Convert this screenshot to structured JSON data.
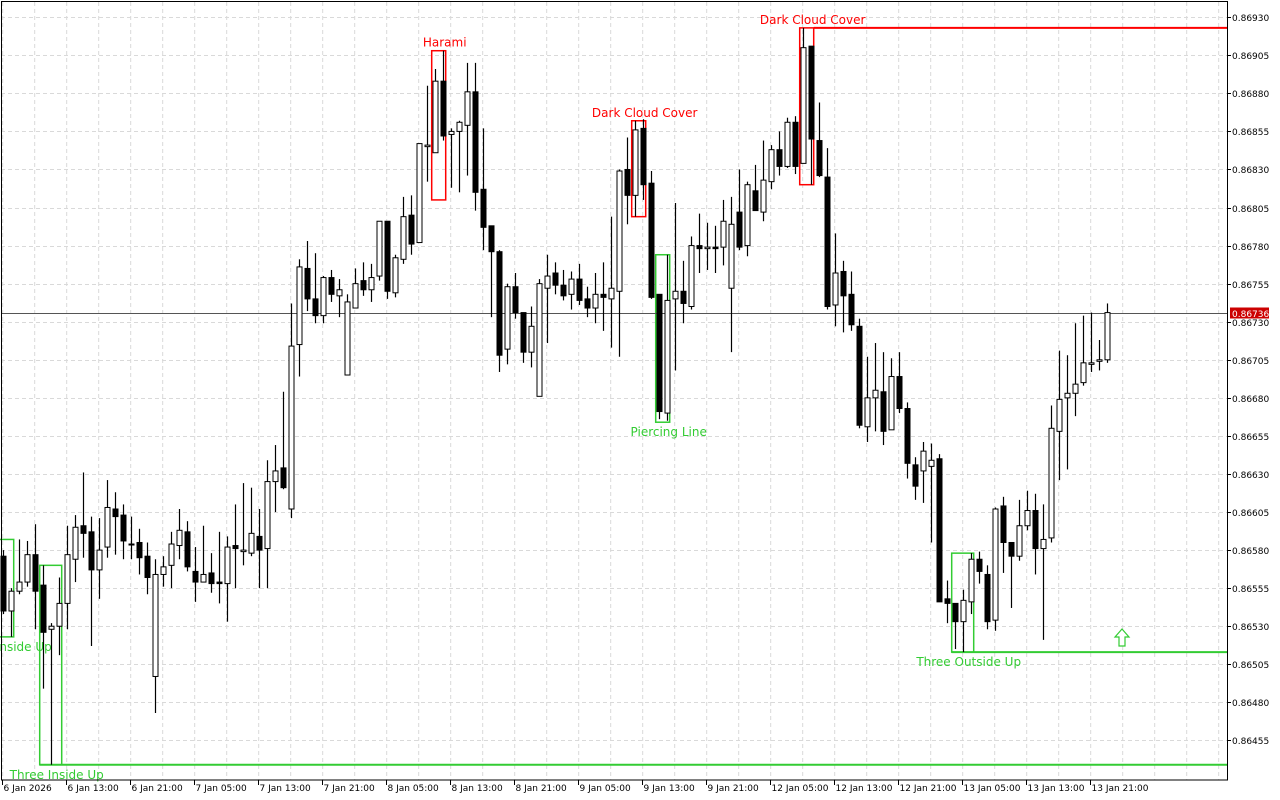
{
  "chart_data": {
    "type": "candlestick",
    "ylim": [
      0.86429,
      0.8694
    ],
    "grid": true,
    "current_price": 0.86736,
    "current_price_label": "0.86736",
    "colors": {
      "bear_pattern": "#ff0000",
      "bull_pattern": "#33cc33",
      "price_tag": "#cc0000",
      "grid": "#d9d9d9",
      "candle": "#000000"
    },
    "y_tick_labels": [
      "0.86930",
      "0.86905",
      "0.86880",
      "0.86855",
      "0.86830",
      "0.86805",
      "0.86780",
      "0.86755",
      "0.86730",
      "0.86705",
      "0.86680",
      "0.86655",
      "0.86630",
      "0.86605",
      "0.86580",
      "0.86555",
      "0.86530",
      "0.86505",
      "0.86480",
      "0.86455"
    ],
    "x_tick_labels": [
      "6 Jan 2026",
      "6 Jan 13:00",
      "6 Jan 21:00",
      "7 Jan 05:00",
      "7 Jan 13:00",
      "7 Jan 21:00",
      "8 Jan 05:00",
      "8 Jan 13:00",
      "8 Jan 21:00",
      "9 Jan 05:00",
      "9 Jan 13:00",
      "9 Jan 21:00",
      "12 Jan 05:00",
      "12 Jan 13:00",
      "12 Jan 21:00",
      "13 Jan 05:00",
      "13 Jan 13:00",
      "13 Jan 21:00"
    ],
    "candle_fields": [
      "open",
      "high",
      "low",
      "close"
    ],
    "candles": [
      [
        0.86576,
        0.8658,
        0.86538,
        0.8654
      ],
      [
        0.8654,
        0.86555,
        0.86523,
        0.86553
      ],
      [
        0.86553,
        0.86587,
        0.86551,
        0.86559
      ],
      [
        0.86559,
        0.86586,
        0.86556,
        0.86577
      ],
      [
        0.86577,
        0.86597,
        0.86528,
        0.86553
      ],
      [
        0.86557,
        0.8657,
        0.86489,
        0.86526
      ],
      [
        0.86528,
        0.86532,
        0.86439,
        0.8653
      ],
      [
        0.8653,
        0.86562,
        0.86511,
        0.86545
      ],
      [
        0.86545,
        0.86596,
        0.86528,
        0.86577
      ],
      [
        0.86574,
        0.86603,
        0.86559,
        0.86595
      ],
      [
        0.86596,
        0.86631,
        0.86575,
        0.86591
      ],
      [
        0.86592,
        0.86602,
        0.86517,
        0.86567
      ],
      [
        0.86567,
        0.86601,
        0.86548,
        0.8658
      ],
      [
        0.86582,
        0.86626,
        0.86575,
        0.86608
      ],
      [
        0.86607,
        0.86618,
        0.86577,
        0.86602
      ],
      [
        0.86603,
        0.8661,
        0.86574,
        0.86586
      ],
      [
        0.86584,
        0.86602,
        0.86574,
        0.86584
      ],
      [
        0.86585,
        0.86594,
        0.86564,
        0.86575
      ],
      [
        0.86576,
        0.86585,
        0.86551,
        0.86562
      ],
      [
        0.86497,
        0.86574,
        0.86473,
        0.86564
      ],
      [
        0.86564,
        0.86576,
        0.86556,
        0.86569
      ],
      [
        0.8657,
        0.86592,
        0.86555,
        0.86584
      ],
      [
        0.86583,
        0.86607,
        0.86574,
        0.86593
      ],
      [
        0.86592,
        0.86599,
        0.86566,
        0.86569
      ],
      [
        0.86566,
        0.86582,
        0.86546,
        0.86559
      ],
      [
        0.86559,
        0.86596,
        0.86559,
        0.86564
      ],
      [
        0.86565,
        0.86578,
        0.86552,
        0.86558
      ],
      [
        0.86559,
        0.86592,
        0.86545,
        0.86558
      ],
      [
        0.86558,
        0.86589,
        0.86533,
        0.86582
      ],
      [
        0.86583,
        0.8661,
        0.86555,
        0.86581
      ],
      [
        0.86579,
        0.86624,
        0.8657,
        0.8658
      ],
      [
        0.86578,
        0.86621,
        0.86576,
        0.86591
      ],
      [
        0.86589,
        0.86607,
        0.86555,
        0.8658
      ],
      [
        0.86581,
        0.86639,
        0.86555,
        0.86625
      ],
      [
        0.86625,
        0.86649,
        0.86605,
        0.86632
      ],
      [
        0.86634,
        0.86684,
        0.8662,
        0.86621
      ],
      [
        0.86607,
        0.86742,
        0.86601,
        0.86714
      ],
      [
        0.86715,
        0.86771,
        0.86694,
        0.86766
      ],
      [
        0.86765,
        0.86783,
        0.86737,
        0.86745
      ],
      [
        0.86745,
        0.86775,
        0.86729,
        0.86734
      ],
      [
        0.86734,
        0.8676,
        0.86729,
        0.86759
      ],
      [
        0.86759,
        0.86764,
        0.86743,
        0.86748
      ],
      [
        0.86747,
        0.86758,
        0.86733,
        0.86751
      ],
      [
        0.86695,
        0.86748,
        0.86695,
        0.86743
      ],
      [
        0.86739,
        0.86765,
        0.86739,
        0.86755
      ],
      [
        0.86757,
        0.86769,
        0.86747,
        0.86751
      ],
      [
        0.86751,
        0.86768,
        0.86743,
        0.86759
      ],
      [
        0.8676,
        0.86796,
        0.86757,
        0.86796
      ],
      [
        0.86796,
        0.86796,
        0.86745,
        0.8675
      ],
      [
        0.86749,
        0.86774,
        0.86746,
        0.86772
      ],
      [
        0.86771,
        0.86812,
        0.86768,
        0.86799
      ],
      [
        0.868,
        0.86813,
        0.86774,
        0.86781
      ],
      [
        0.86782,
        0.86847,
        0.86782,
        0.86847
      ],
      [
        0.86845,
        0.86885,
        0.86822,
        0.86846
      ],
      [
        0.86841,
        0.86896,
        0.86841,
        0.86888
      ],
      [
        0.86888,
        0.86908,
        0.86849,
        0.86852
      ],
      [
        0.86853,
        0.86857,
        0.86818,
        0.86855
      ],
      [
        0.86855,
        0.86862,
        0.86815,
        0.86861
      ],
      [
        0.86859,
        0.869,
        0.86826,
        0.86881
      ],
      [
        0.86881,
        0.869,
        0.86803,
        0.86815
      ],
      [
        0.86817,
        0.86857,
        0.86777,
        0.86792
      ],
      [
        0.86793,
        0.86793,
        0.86733,
        0.86776
      ],
      [
        0.86776,
        0.86777,
        0.86697,
        0.86708
      ],
      [
        0.86712,
        0.86755,
        0.86702,
        0.86753
      ],
      [
        0.86753,
        0.86762,
        0.86732,
        0.86736
      ],
      [
        0.86736,
        0.86736,
        0.86703,
        0.8671
      ],
      [
        0.8671,
        0.8674,
        0.867,
        0.86727
      ],
      [
        0.86681,
        0.86758,
        0.86681,
        0.86755
      ],
      [
        0.86752,
        0.86774,
        0.86716,
        0.8676
      ],
      [
        0.86762,
        0.86769,
        0.86748,
        0.86754
      ],
      [
        0.86754,
        0.86764,
        0.86744,
        0.86747
      ],
      [
        0.86748,
        0.86763,
        0.86738,
        0.86758
      ],
      [
        0.86758,
        0.86768,
        0.86741,
        0.86744
      ],
      [
        0.86745,
        0.86753,
        0.86733,
        0.86739
      ],
      [
        0.86739,
        0.86762,
        0.86729,
        0.86748
      ],
      [
        0.86748,
        0.86769,
        0.86724,
        0.86746
      ],
      [
        0.86745,
        0.86799,
        0.86713,
        0.86752
      ],
      [
        0.8675,
        0.8683,
        0.86707,
        0.86829
      ],
      [
        0.8683,
        0.86851,
        0.86794,
        0.86813
      ],
      [
        0.86813,
        0.86862,
        0.86799,
        0.86856
      ],
      [
        0.86857,
        0.86863,
        0.8681,
        0.8682
      ],
      [
        0.86821,
        0.86829,
        0.86745,
        0.86746
      ],
      [
        0.86748,
        0.86748,
        0.86666,
        0.86671
      ],
      [
        0.8667,
        0.86774,
        0.86665,
        0.86744
      ],
      [
        0.86745,
        0.86808,
        0.86698,
        0.8675
      ],
      [
        0.8675,
        0.8677,
        0.86729,
        0.86742
      ],
      [
        0.8674,
        0.86786,
        0.86738,
        0.8678
      ],
      [
        0.8678,
        0.86801,
        0.86762,
        0.86778
      ],
      [
        0.86778,
        0.86795,
        0.86764,
        0.86779
      ],
      [
        0.86779,
        0.86793,
        0.86762,
        0.86778
      ],
      [
        0.86779,
        0.8681,
        0.86767,
        0.86796
      ],
      [
        0.86752,
        0.86812,
        0.8671,
        0.86794
      ],
      [
        0.86802,
        0.8683,
        0.86777,
        0.86779
      ],
      [
        0.8678,
        0.86822,
        0.86773,
        0.8682
      ],
      [
        0.86816,
        0.86833,
        0.86803,
        0.86803
      ],
      [
        0.86802,
        0.86849,
        0.86796,
        0.86823
      ],
      [
        0.86822,
        0.86846,
        0.86817,
        0.86843
      ],
      [
        0.86843,
        0.86855,
        0.86826,
        0.86832
      ],
      [
        0.86832,
        0.86864,
        0.86831,
        0.86861
      ],
      [
        0.86861,
        0.86865,
        0.86827,
        0.86832
      ],
      [
        0.86834,
        0.86923,
        0.86834,
        0.8691
      ],
      [
        0.86911,
        0.86911,
        0.8682,
        0.8685
      ],
      [
        0.86849,
        0.86874,
        0.86825,
        0.86826
      ],
      [
        0.86825,
        0.86844,
        0.86738,
        0.8674
      ],
      [
        0.86741,
        0.86788,
        0.86727,
        0.86762
      ],
      [
        0.86763,
        0.8677,
        0.86723,
        0.86747
      ],
      [
        0.86748,
        0.86763,
        0.86724,
        0.86728
      ],
      [
        0.86727,
        0.86732,
        0.8666,
        0.86662
      ],
      [
        0.86661,
        0.86707,
        0.86651,
        0.8668
      ],
      [
        0.8668,
        0.86716,
        0.86658,
        0.86685
      ],
      [
        0.86684,
        0.8671,
        0.86649,
        0.86658
      ],
      [
        0.86659,
        0.86706,
        0.86659,
        0.86694
      ],
      [
        0.86694,
        0.8671,
        0.8667,
        0.86673
      ],
      [
        0.86673,
        0.86677,
        0.86627,
        0.86637
      ],
      [
        0.86636,
        0.86641,
        0.86613,
        0.86622
      ],
      [
        0.86632,
        0.86651,
        0.86611,
        0.86645
      ],
      [
        0.86635,
        0.8665,
        0.86585,
        0.86639
      ],
      [
        0.8664,
        0.86643,
        0.86546,
        0.86546
      ],
      [
        0.86548,
        0.8656,
        0.86532,
        0.86545
      ],
      [
        0.86545,
        0.86545,
        0.86515,
        0.86533
      ],
      [
        0.86533,
        0.86554,
        0.86513,
        0.86547
      ],
      [
        0.86546,
        0.86578,
        0.86538,
        0.86574
      ],
      [
        0.86574,
        0.86579,
        0.86558,
        0.86566
      ],
      [
        0.86564,
        0.8657,
        0.86528,
        0.86533
      ],
      [
        0.86534,
        0.86608,
        0.86527,
        0.86607
      ],
      [
        0.86609,
        0.86615,
        0.86565,
        0.86585
      ],
      [
        0.86585,
        0.86585,
        0.86542,
        0.86576
      ],
      [
        0.86576,
        0.86613,
        0.86573,
        0.86596
      ],
      [
        0.86596,
        0.86619,
        0.86593,
        0.86606
      ],
      [
        0.86606,
        0.86617,
        0.86564,
        0.86581
      ],
      [
        0.86581,
        0.8661,
        0.86521,
        0.86587
      ],
      [
        0.86588,
        0.86675,
        0.86585,
        0.8666
      ],
      [
        0.86658,
        0.86711,
        0.86626,
        0.86679
      ],
      [
        0.8668,
        0.86708,
        0.86633,
        0.86683
      ],
      [
        0.86683,
        0.86729,
        0.86668,
        0.86689
      ],
      [
        0.8669,
        0.86734,
        0.86688,
        0.86703
      ],
      [
        0.86702,
        0.86736,
        0.86697,
        0.86703
      ],
      [
        0.86704,
        0.86718,
        0.86698,
        0.86705
      ],
      [
        0.86705,
        0.86742,
        0.86703,
        0.86736
      ]
    ],
    "patterns": [
      {
        "name": "Three Inside Up",
        "direction": "bullish",
        "from": -2,
        "to": 1,
        "high": 0.86587,
        "low": 0.86523,
        "extend": "none"
      },
      {
        "name": "Three Inside Up",
        "direction": "bullish",
        "from": 5,
        "to": 7,
        "high": 0.8657,
        "low": 0.86439,
        "extend": "low"
      },
      {
        "name": "Harami",
        "direction": "bearish",
        "from": 54,
        "to": 55,
        "high": 0.86908,
        "low": 0.8681,
        "extend": "none"
      },
      {
        "name": "Dark Cloud Cover",
        "direction": "bearish",
        "from": 79,
        "to": 80,
        "high": 0.86862,
        "low": 0.86799,
        "extend": "none"
      },
      {
        "name": "Piercing Line",
        "direction": "bullish",
        "from": 82,
        "to": 83,
        "high": 0.86774,
        "low": 0.86664,
        "extend": "none"
      },
      {
        "name": "Dark Cloud Cover",
        "direction": "bearish",
        "from": 100,
        "to": 101,
        "high": 0.86923,
        "low": 0.8682,
        "extend": "high"
      },
      {
        "name": "Three Outside Up",
        "direction": "bullish",
        "from": 119,
        "to": 121,
        "high": 0.86578,
        "low": 0.86513,
        "extend": "low"
      }
    ],
    "signal_arrow": {
      "icon": "up-arrow-outline",
      "direction": "buy",
      "color": "#33cc33"
    }
  }
}
